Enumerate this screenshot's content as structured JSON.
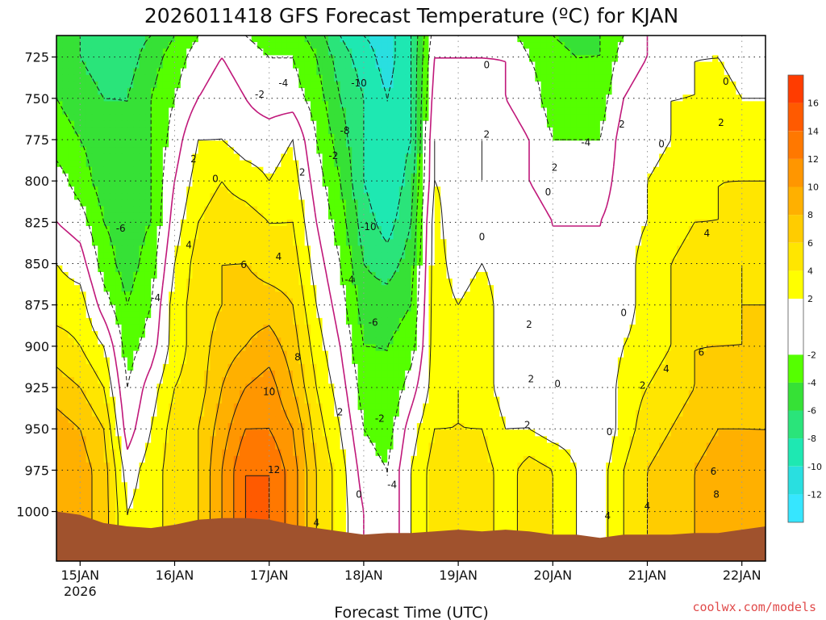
{
  "chart_data": {
    "type": "heatmap",
    "title": "2026011418 GFS Forecast Temperature (ºC) for KJAN",
    "xlabel": "Forecast Time (UTC)",
    "ylabel": "",
    "credit": "coolwx.com/models",
    "y_ticks": [
      "725",
      "750",
      "775",
      "800",
      "825",
      "850",
      "875",
      "900",
      "925",
      "950",
      "975",
      "1000"
    ],
    "y_values": [
      725,
      750,
      775,
      800,
      825,
      850,
      875,
      900,
      925,
      950,
      975,
      1000
    ],
    "ylim": [
      1030,
      712
    ],
    "x_ticks": [
      "15JAN",
      "16JAN",
      "17JAN",
      "18JAN",
      "19JAN",
      "20JAN",
      "21JAN",
      "22JAN"
    ],
    "x_tick_sub": [
      "2026",
      "",
      "",
      "",
      "",
      "",
      "",
      ""
    ],
    "x_values": [
      0.25,
      1.25,
      2.25,
      3.25,
      4.25,
      5.25,
      6.25,
      7.25
    ],
    "xlim": [
      0,
      7.5
    ],
    "colorbar": {
      "ticks": [
        "16",
        "14",
        "12",
        "10",
        "8",
        "6",
        "4",
        "2",
        "-2",
        "-4",
        "-6",
        "-8",
        "-10",
        "-12"
      ],
      "bands": [
        {
          "from": -14,
          "to": -12,
          "color": "#36e6ff"
        },
        {
          "from": -12,
          "to": -10,
          "color": "#29dfe0"
        },
        {
          "from": -10,
          "to": -8,
          "color": "#1ee8b2"
        },
        {
          "from": -8,
          "to": -6,
          "color": "#2ae47a"
        },
        {
          "from": -6,
          "to": -4,
          "color": "#36e136"
        },
        {
          "from": -4,
          "to": -2,
          "color": "#55ff00"
        },
        {
          "from": -2,
          "to": 2,
          "color": "#ffffff"
        },
        {
          "from": 2,
          "to": 4,
          "color": "#ffff00"
        },
        {
          "from": 4,
          "to": 6,
          "color": "#ffe600"
        },
        {
          "from": 6,
          "to": 8,
          "color": "#ffcc00"
        },
        {
          "from": 8,
          "to": 10,
          "color": "#ffb000"
        },
        {
          "from": 10,
          "to": 12,
          "color": "#ff9600"
        },
        {
          "from": 12,
          "to": 14,
          "color": "#ff7800"
        },
        {
          "from": 14,
          "to": 16,
          "color": "#ff5a00"
        },
        {
          "from": 16,
          "to": 18,
          "color": "#ff3c00"
        }
      ]
    },
    "terrain_color": "#a0522d",
    "columns": [
      {
        "t": 0.0,
        "v": [
          -5,
          -5,
          -4,
          -3,
          -1,
          0,
          2,
          3,
          5,
          7,
          9,
          10,
          10
        ]
      },
      {
        "t": 0.25,
        "v": [
          -6,
          -6,
          -5,
          -4,
          -3,
          -1,
          1,
          3,
          4,
          6,
          8,
          9,
          9
        ]
      },
      {
        "t": 0.5,
        "v": [
          -7,
          -7,
          -6,
          -5,
          -5,
          -4,
          -3,
          -1,
          2,
          4,
          6,
          7,
          7
        ]
      },
      {
        "t": 0.75,
        "v": [
          -7,
          -7,
          -6,
          -6,
          -6,
          -5,
          -5,
          -4,
          -3,
          -2,
          -1,
          1,
          2
        ]
      },
      {
        "t": 1.0,
        "v": [
          -6,
          -5,
          -4,
          -4,
          -4,
          -4,
          -3,
          -2,
          -1,
          1,
          2,
          3,
          3
        ]
      },
      {
        "t": 1.25,
        "v": [
          -4,
          -3,
          -2,
          -1,
          0,
          1,
          2,
          3,
          3,
          4,
          5,
          5,
          5
        ]
      },
      {
        "t": 1.5,
        "v": [
          -2,
          -1,
          0,
          2,
          3,
          4,
          5,
          5,
          5,
          5,
          6,
          6,
          6
        ]
      },
      {
        "t": 1.75,
        "v": [
          -1,
          0,
          1,
          2,
          4,
          5,
          6,
          6,
          7,
          8,
          9,
          10,
          10
        ]
      },
      {
        "t": 2.0,
        "v": [
          -2,
          -1,
          0,
          1,
          3,
          5,
          6,
          7,
          8,
          10,
          12,
          14,
          14
        ]
      },
      {
        "t": 2.25,
        "v": [
          -3,
          -2,
          -1,
          1,
          2,
          4,
          5,
          7,
          9,
          11,
          12,
          14,
          14
        ]
      },
      {
        "t": 2.5,
        "v": [
          -3,
          -2,
          -1,
          2,
          3,
          4,
          5,
          6,
          7,
          8,
          10,
          11,
          11
        ]
      },
      {
        "t": 2.75,
        "v": [
          -5,
          -4,
          -3,
          -2,
          -1,
          0,
          1,
          2,
          3,
          4,
          5,
          6,
          6
        ]
      },
      {
        "t": 3.0,
        "v": [
          -8,
          -7,
          -6,
          -5,
          -4,
          -3,
          -2,
          -1,
          0,
          1,
          2,
          3,
          3
        ]
      },
      {
        "t": 3.25,
        "v": [
          -10,
          -9,
          -8,
          -8,
          -8,
          -7,
          -6,
          -5,
          -4,
          -3,
          -2,
          -1,
          0
        ]
      },
      {
        "t": 3.5,
        "v": [
          -11,
          -11,
          -10,
          -10,
          -10,
          -9,
          -7,
          -5,
          -4,
          -4,
          -3,
          -2,
          -2
        ]
      },
      {
        "t": 3.75,
        "v": [
          -8,
          -8,
          -8,
          -8,
          -7,
          -6,
          -5,
          -4,
          -3,
          -1,
          1,
          2,
          2
        ]
      },
      {
        "t": 4.0,
        "v": [
          -1,
          0,
          1,
          2,
          2,
          3,
          3,
          3,
          3,
          3,
          4,
          5,
          5
        ]
      },
      {
        "t": 4.25,
        "v": [
          -1,
          0,
          1,
          2,
          1,
          0,
          1,
          2,
          3,
          4,
          4,
          5,
          5
        ]
      },
      {
        "t": 4.5,
        "v": [
          -1,
          0,
          1,
          2,
          2,
          1,
          2,
          3,
          3,
          3,
          4,
          5,
          5
        ]
      },
      {
        "t": 4.75,
        "v": [
          -1,
          0,
          0,
          1,
          1,
          1,
          1,
          1,
          1,
          1,
          2,
          3,
          3
        ]
      },
      {
        "t": 5.0,
        "v": [
          -3,
          -2,
          -1,
          0,
          0,
          1,
          1,
          1,
          1,
          1,
          2,
          5,
          5
        ]
      },
      {
        "t": 5.25,
        "v": [
          -4,
          -3,
          -3,
          -2,
          -1,
          0,
          0,
          0,
          0,
          0,
          1,
          4,
          4
        ]
      },
      {
        "t": 5.5,
        "v": [
          -5,
          -4,
          -3,
          -2,
          -1,
          0,
          0,
          0,
          0,
          1,
          1,
          2,
          2
        ]
      },
      {
        "t": 5.75,
        "v": [
          -4,
          -4,
          -3,
          -2,
          -1,
          0,
          0,
          0,
          0,
          0,
          0,
          1,
          1
        ]
      },
      {
        "t": 6.0,
        "v": [
          -2,
          -1,
          0,
          1,
          1,
          1,
          1,
          1,
          2,
          3,
          3,
          4,
          4
        ]
      },
      {
        "t": 6.25,
        "v": [
          0,
          0,
          1,
          1,
          2,
          2,
          3,
          3,
          3,
          4,
          5,
          6,
          6
        ]
      },
      {
        "t": 6.5,
        "v": [
          1,
          1,
          2,
          2,
          3,
          3,
          4,
          4,
          4,
          5,
          6,
          7,
          7
        ]
      },
      {
        "t": 6.75,
        "v": [
          1,
          2,
          2,
          3,
          3,
          4,
          5,
          5,
          6,
          6,
          7,
          8,
          8
        ]
      },
      {
        "t": 7.0,
        "v": [
          1,
          2,
          3,
          3,
          4,
          4,
          5,
          5,
          6,
          7,
          8,
          9,
          9
        ]
      },
      {
        "t": 7.25,
        "v": [
          0,
          1,
          2,
          3,
          4,
          5,
          6,
          6,
          6,
          7,
          8,
          9,
          9
        ]
      },
      {
        "t": 7.5,
        "v": [
          0,
          1,
          2,
          3,
          4,
          5,
          5,
          6,
          7,
          7,
          8,
          8,
          8
        ]
      }
    ],
    "column_levels": [
      712,
      725,
      750,
      775,
      800,
      825,
      850,
      875,
      900,
      925,
      950,
      975,
      1000
    ],
    "terrain": [
      {
        "t": 0.0,
        "p": 1000
      },
      {
        "t": 0.25,
        "p": 1002
      },
      {
        "t": 0.5,
        "p": 1007
      },
      {
        "t": 0.75,
        "p": 1009
      },
      {
        "t": 1.0,
        "p": 1010
      },
      {
        "t": 1.25,
        "p": 1008
      },
      {
        "t": 1.5,
        "p": 1005
      },
      {
        "t": 1.75,
        "p": 1004
      },
      {
        "t": 2.0,
        "p": 1004
      },
      {
        "t": 2.25,
        "p": 1005
      },
      {
        "t": 2.5,
        "p": 1008
      },
      {
        "t": 2.75,
        "p": 1010
      },
      {
        "t": 3.0,
        "p": 1012
      },
      {
        "t": 3.25,
        "p": 1014
      },
      {
        "t": 3.5,
        "p": 1013
      },
      {
        "t": 3.75,
        "p": 1013
      },
      {
        "t": 4.0,
        "p": 1012
      },
      {
        "t": 4.25,
        "p": 1011
      },
      {
        "t": 4.5,
        "p": 1012
      },
      {
        "t": 4.75,
        "p": 1011
      },
      {
        "t": 5.0,
        "p": 1012
      },
      {
        "t": 5.25,
        "p": 1014
      },
      {
        "t": 5.5,
        "p": 1014
      },
      {
        "t": 5.75,
        "p": 1016
      },
      {
        "t": 6.0,
        "p": 1014
      },
      {
        "t": 6.25,
        "p": 1014
      },
      {
        "t": 6.5,
        "p": 1014
      },
      {
        "t": 6.75,
        "p": 1013
      },
      {
        "t": 7.0,
        "p": 1013
      },
      {
        "t": 7.25,
        "p": 1011
      },
      {
        "t": 7.5,
        "p": 1009
      }
    ],
    "contour_labels": [
      {
        "t": 0.68,
        "p": 829,
        "text": "-6"
      },
      {
        "t": 1.05,
        "p": 871,
        "text": "-4"
      },
      {
        "t": 1.4,
        "p": 839,
        "text": "4"
      },
      {
        "t": 1.68,
        "p": 799,
        "text": "0"
      },
      {
        "t": 1.45,
        "p": 787,
        "text": "2"
      },
      {
        "t": 1.98,
        "p": 851,
        "text": "6"
      },
      {
        "t": 2.35,
        "p": 846,
        "text": "4"
      },
      {
        "t": 2.6,
        "p": 795,
        "text": "2"
      },
      {
        "t": 2.15,
        "p": 748,
        "text": "-2"
      },
      {
        "t": 2.4,
        "p": 741,
        "text": "-4"
      },
      {
        "t": 2.55,
        "p": 907,
        "text": "8"
      },
      {
        "t": 2.25,
        "p": 928,
        "text": "10"
      },
      {
        "t": 2.3,
        "p": 975,
        "text": "12"
      },
      {
        "t": 3.2,
        "p": 741,
        "text": "-10"
      },
      {
        "t": 3.05,
        "p": 770,
        "text": "-8"
      },
      {
        "t": 2.93,
        "p": 785,
        "text": "-2"
      },
      {
        "t": 3.3,
        "p": 828,
        "text": "-10"
      },
      {
        "t": 3.1,
        "p": 860,
        "text": "-4"
      },
      {
        "t": 3.35,
        "p": 886,
        "text": "-6"
      },
      {
        "t": 3.0,
        "p": 940,
        "text": "2"
      },
      {
        "t": 3.42,
        "p": 944,
        "text": "-2"
      },
      {
        "t": 3.55,
        "p": 984,
        "text": "-4"
      },
      {
        "t": 3.2,
        "p": 990,
        "text": "0"
      },
      {
        "t": 2.75,
        "p": 1007,
        "text": "4"
      },
      {
        "t": 4.55,
        "p": 730,
        "text": "0"
      },
      {
        "t": 4.55,
        "p": 772,
        "text": "2"
      },
      {
        "t": 4.5,
        "p": 834,
        "text": "0"
      },
      {
        "t": 5.0,
        "p": 887,
        "text": "2"
      },
      {
        "t": 5.02,
        "p": 920,
        "text": "2"
      },
      {
        "t": 5.3,
        "p": 923,
        "text": "0"
      },
      {
        "t": 4.98,
        "p": 948,
        "text": "2"
      },
      {
        "t": 5.2,
        "p": 807,
        "text": "0"
      },
      {
        "t": 5.27,
        "p": 792,
        "text": "2"
      },
      {
        "t": 5.6,
        "p": 777,
        "text": "-4"
      },
      {
        "t": 5.98,
        "p": 766,
        "text": "2"
      },
      {
        "t": 6.4,
        "p": 778,
        "text": "0"
      },
      {
        "t": 7.08,
        "p": 740,
        "text": "0"
      },
      {
        "t": 7.03,
        "p": 765,
        "text": "2"
      },
      {
        "t": 6.88,
        "p": 832,
        "text": "4"
      },
      {
        "t": 6.0,
        "p": 880,
        "text": "0"
      },
      {
        "t": 6.2,
        "p": 924,
        "text": "2"
      },
      {
        "t": 6.45,
        "p": 914,
        "text": "4"
      },
      {
        "t": 6.82,
        "p": 904,
        "text": "6"
      },
      {
        "t": 5.85,
        "p": 952,
        "text": "0"
      },
      {
        "t": 6.25,
        "p": 997,
        "text": "4"
      },
      {
        "t": 6.95,
        "p": 976,
        "text": "6"
      },
      {
        "t": 6.98,
        "p": 990,
        "text": "8"
      },
      {
        "t": 5.83,
        "p": 1003,
        "text": "4"
      }
    ]
  }
}
